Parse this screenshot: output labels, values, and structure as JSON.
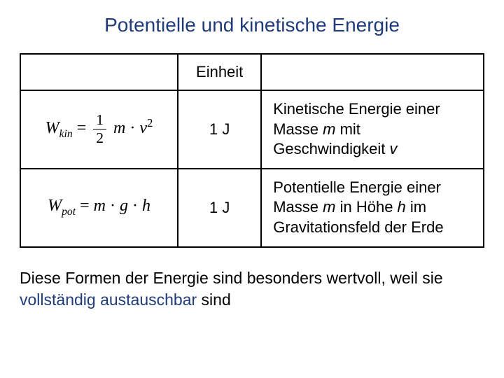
{
  "title": {
    "text": "Potentielle und kinetische Energie",
    "color": "#1f3b7a",
    "fontsize": 28
  },
  "table": {
    "border_color": "#000000",
    "columns": [
      "formula",
      "unit",
      "description"
    ],
    "header": {
      "unit_label": "Einheit"
    },
    "rows": [
      {
        "formula_var": "W",
        "formula_sub": "kin",
        "formula_rhs": "½·m·v²",
        "unit": "1 J",
        "desc_parts": {
          "pre1": "Kinetische Energie einer Masse ",
          "sym1": "m",
          "mid": " mit Geschwindigkeit ",
          "sym2": "v"
        }
      },
      {
        "formula_var": "W",
        "formula_sub": "pot",
        "formula_rhs": "m·g·h",
        "unit": "1 J",
        "desc_parts": {
          "pre1": "Potentielle Energie einer Masse ",
          "sym1": "m",
          "mid": " in Höhe ",
          "sym2": "h",
          "post": " im Gravitationsfeld der Erde"
        }
      }
    ]
  },
  "footer": {
    "line1": "Diese Formen der Energie sind besonders wertvoll, weil sie ",
    "accent_text": "vollständig austauschbar",
    "line1_end": " sind",
    "accent_color": "#1f3b7a"
  },
  "text_color": "#000000",
  "background_color": "#ffffff"
}
